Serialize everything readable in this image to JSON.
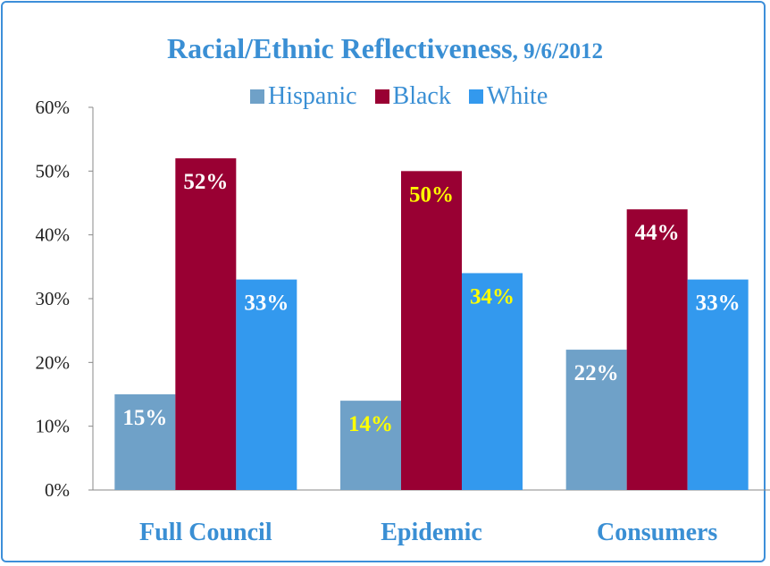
{
  "chart_data": {
    "type": "bar",
    "title": "Racial/Ethnic Reflectiveness",
    "title_suffix": ", 9/6/2012",
    "categories": [
      "Full Council",
      "Epidemic",
      "Consumers"
    ],
    "series": [
      {
        "name": "Hispanic",
        "color": "#6fa1c8",
        "values": [
          15,
          14,
          22
        ],
        "labels": [
          "15%",
          "14%",
          "22%"
        ],
        "label_colors": [
          "#ffffff",
          "#ffff00",
          "#ffffff"
        ]
      },
      {
        "name": "Black",
        "color": "#990033",
        "values": [
          52,
          50,
          44
        ],
        "labels": [
          "52%",
          "50%",
          "44%"
        ],
        "label_colors": [
          "#ffffff",
          "#ffff00",
          "#ffffff"
        ]
      },
      {
        "name": "White",
        "color": "#3399ee",
        "values": [
          33,
          34,
          33
        ],
        "labels": [
          "33%",
          "34%",
          "33%"
        ],
        "label_colors": [
          "#ffffff",
          "#ffff00",
          "#ffffff"
        ]
      }
    ],
    "yticks": [
      "0%",
      "10%",
      "20%",
      "30%",
      "40%",
      "50%",
      "60%"
    ],
    "ylim": [
      0,
      60
    ],
    "grid": false,
    "legend_position": "top-center"
  }
}
